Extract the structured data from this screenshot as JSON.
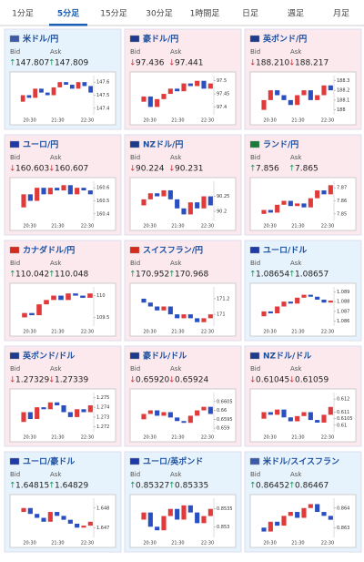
{
  "tabs": [
    "1分足",
    "5分足",
    "15分足",
    "30分足",
    "1時間足",
    "日足",
    "週足",
    "月足"
  ],
  "active_tab": 1,
  "bid_label": "Bid",
  "ask_label": "Ask",
  "time_labels": [
    "20:30",
    "21:30",
    "22:30"
  ],
  "tiles": [
    {
      "name": "米ドル/円",
      "bg": "#e6f2fc",
      "flag": "#3c5aa6",
      "bid_dir": "↑",
      "bid": "147.807",
      "ask_dir": "↑",
      "ask": "147.809",
      "ylim": [
        147.35,
        147.65
      ],
      "yticks": [
        147.4,
        147.5,
        147.6
      ],
      "values": [
        147.45,
        147.5,
        147.48,
        147.55,
        147.52,
        147.5,
        147.56,
        147.6,
        147.58,
        147.55,
        147.6,
        147.57,
        147.52
      ]
    },
    {
      "name": "豪ドル/円",
      "bg": "#fbe9ee",
      "flag": "#1f3a8a",
      "bid_dir": "↓",
      "bid": "97.436",
      "ask_dir": "↓",
      "ask": "97.441",
      "ylim": [
        97.37,
        97.52
      ],
      "yticks": [
        97.4,
        97.45,
        97.5
      ],
      "values": [
        97.42,
        97.44,
        97.4,
        97.43,
        97.45,
        97.47,
        97.46,
        97.49,
        97.48,
        97.5,
        97.47,
        97.49
      ]
    },
    {
      "name": "英ポンド/円",
      "bg": "#fbe9ee",
      "flag": "#1f3a8a",
      "bid_dir": "↓",
      "bid": "188.210",
      "ask_dir": "↓",
      "ask": "188.217",
      "ylim": [
        187.95,
        188.35
      ],
      "yticks": [
        188,
        188.1,
        188.2,
        188.3
      ],
      "values": [
        188.0,
        188.1,
        188.2,
        188.15,
        188.1,
        188.05,
        188.15,
        188.2,
        188.1,
        188.15,
        188.25,
        188.2
      ]
    },
    {
      "name": "ユーロ/円",
      "bg": "#fbe9ee",
      "flag": "#1f3aa6",
      "bid_dir": "↓",
      "bid": "160.603",
      "ask_dir": "↓",
      "ask": "160.607",
      "ylim": [
        160.35,
        160.65
      ],
      "yticks": [
        160.4,
        160.5,
        160.6
      ],
      "values": [
        160.45,
        160.55,
        160.5,
        160.6,
        160.55,
        160.6,
        160.58,
        160.62,
        160.55,
        160.6,
        160.58,
        160.55
      ]
    },
    {
      "name": "NZドル/円",
      "bg": "#fbe9ee",
      "flag": "#1f3a8a",
      "bid_dir": "↓",
      "bid": "90.224",
      "ask_dir": "↓",
      "ask": "90.231",
      "ylim": [
        90.17,
        90.3
      ],
      "yticks": [
        90.2,
        90.25
      ],
      "values": [
        90.22,
        90.24,
        90.26,
        90.25,
        90.27,
        90.24,
        90.21,
        90.19,
        90.23,
        90.21,
        90.25,
        90.22
      ]
    },
    {
      "name": "ランド/円",
      "bg": "#fbe9ee",
      "flag": "#1a7a3a",
      "bid_dir": "↑",
      "bid": "7.856",
      "ask_dir": "↑",
      "ask": "7.865",
      "ylim": [
        7.845,
        7.875
      ],
      "yticks": [
        7.85,
        7.86,
        7.87
      ],
      "values": [
        7.85,
        7.853,
        7.851,
        7.857,
        7.86,
        7.856,
        7.858,
        7.855,
        7.862,
        7.868,
        7.865,
        7.872
      ]
    },
    {
      "name": "カナダドル/円",
      "bg": "#fbe9ee",
      "flag": "#d52b1e",
      "bid_dir": "↑",
      "bid": "110.042",
      "ask_dir": "↑",
      "ask": "110.048",
      "ylim": [
        109.3,
        110.2
      ],
      "yticks": [
        109.5,
        110
      ],
      "values": [
        109.5,
        109.6,
        109.55,
        109.8,
        109.9,
        110.0,
        109.9,
        110.05,
        110.0,
        109.95,
        110.05
      ]
    },
    {
      "name": "スイスフラン/円",
      "bg": "#fbe9ee",
      "flag": "#d52b1e",
      "bid_dir": "↑",
      "bid": "170.952",
      "ask_dir": "↑",
      "ask": "170.968",
      "ylim": [
        170.85,
        171.35
      ],
      "yticks": [
        171,
        171.2
      ],
      "values": [
        171.2,
        171.15,
        171.1,
        171.05,
        171.1,
        171.0,
        170.95,
        171.0,
        170.95,
        170.9,
        170.95,
        171.0
      ]
    },
    {
      "name": "ユーロ/ドル",
      "bg": "#e6f2fc",
      "flag": "#1f3aa6",
      "bid_dir": "↑",
      "bid": "1.08654",
      "ask_dir": "↑",
      "ask": "1.08657",
      "ylim": [
        1.0855,
        1.0895
      ],
      "yticks": [
        1.086,
        1.087,
        1.088,
        1.089
      ],
      "values": [
        1.0865,
        1.087,
        1.0868,
        1.0875,
        1.088,
        1.0878,
        1.0884,
        1.0887,
        1.0885,
        1.0882,
        1.0879,
        1.0881
      ]
    },
    {
      "name": "英ポンド/ドル",
      "bg": "#fbe9ee",
      "flag": "#1f3a8a",
      "bid_dir": "↓",
      "bid": "1.27329",
      "ask_dir": "↓",
      "ask": "1.27339",
      "ylim": [
        1.2715,
        1.2755
      ],
      "yticks": [
        1.272,
        1.273,
        1.274,
        1.275
      ],
      "values": [
        1.2725,
        1.2735,
        1.2728,
        1.274,
        1.2738,
        1.2745,
        1.2742,
        1.2735,
        1.273,
        1.2738,
        1.2735,
        1.2742
      ]
    },
    {
      "name": "豪ドル/ドル",
      "bg": "#fbe9ee",
      "flag": "#1f3a8a",
      "bid_dir": "↓",
      "bid": "0.65920",
      "ask_dir": "↓",
      "ask": "0.65924",
      "ylim": [
        0.6588,
        0.661
      ],
      "yticks": [
        0.659,
        0.6595,
        0.66,
        0.6605
      ],
      "values": [
        0.6595,
        0.6598,
        0.66,
        0.6597,
        0.6599,
        0.6596,
        0.6594,
        0.6593,
        0.6597,
        0.66,
        0.6602,
        0.6598
      ]
    },
    {
      "name": "NZドル/ドル",
      "bg": "#fbe9ee",
      "flag": "#1f3a8a",
      "bid_dir": "↓",
      "bid": "0.61045",
      "ask_dir": "↓",
      "ask": "0.61059",
      "ylim": [
        0.6095,
        0.6125
      ],
      "yticks": [
        0.61,
        0.6105,
        0.611,
        0.612
      ],
      "values": [
        0.6105,
        0.611,
        0.6108,
        0.6112,
        0.6106,
        0.6103,
        0.6107,
        0.611,
        0.6104,
        0.6102,
        0.6108,
        0.6114
      ]
    },
    {
      "name": "ユーロ/豪ドル",
      "bg": "#e6f2fc",
      "flag": "#1f3aa6",
      "bid_dir": "↑",
      "bid": "1.64815",
      "ask_dir": "↑",
      "ask": "1.64829",
      "ylim": [
        1.6465,
        1.6485
      ],
      "yticks": [
        1.647,
        1.648
      ],
      "values": [
        1.6478,
        1.648,
        1.6477,
        1.6475,
        1.6473,
        1.6478,
        1.6476,
        1.6474,
        1.6472,
        1.647,
        1.6471,
        1.6473
      ]
    },
    {
      "name": "ユーロ/英ポンド",
      "bg": "#e6f2fc",
      "flag": "#1f3aa6",
      "bid_dir": "↑",
      "bid": "0.85327",
      "ask_dir": "↑",
      "ask": "0.85335",
      "ylim": [
        0.8527,
        0.8538
      ],
      "yticks": [
        0.853,
        0.8535
      ],
      "values": [
        0.8532,
        0.8534,
        0.853,
        0.8529,
        0.8533,
        0.8535,
        0.8532,
        0.8536,
        0.8534,
        0.8531,
        0.8533,
        0.8535
      ]
    },
    {
      "name": "米ドル/スイスフラン",
      "bg": "#e6f2fc",
      "flag": "#3c5aa6",
      "bid_dir": "↑",
      "bid": "0.86452",
      "ask_dir": "↑",
      "ask": "0.86467",
      "ylim": [
        0.8625,
        0.8645
      ],
      "yticks": [
        0.863,
        0.864
      ],
      "values": [
        0.863,
        0.8628,
        0.8633,
        0.8631,
        0.8636,
        0.8638,
        0.8635,
        0.864,
        0.8642,
        0.8638,
        0.8636,
        0.8634
      ]
    }
  ]
}
